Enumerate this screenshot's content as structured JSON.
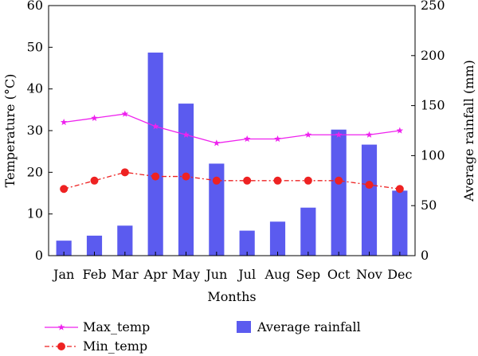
{
  "chart_data": {
    "type": "bar+line",
    "xlabel": "Months",
    "ylabel_left": "Temperature (°C)",
    "ylabel_right": "Average rainfall (mm)",
    "categories": [
      "Jan",
      "Feb",
      "Mar",
      "Apr",
      "May",
      "Jun",
      "Jul",
      "Aug",
      "Sep",
      "Oct",
      "Nov",
      "Dec"
    ],
    "y_left": {
      "min": 0,
      "max": 60,
      "ticks": [
        "0",
        "10",
        "20",
        "30",
        "40",
        "50",
        "60"
      ]
    },
    "y_right": {
      "min": 0,
      "max": 250,
      "ticks": [
        "0",
        "50",
        "100",
        "150",
        "200",
        "250"
      ]
    },
    "bars": {
      "name": "Average rainfall",
      "axis": "right",
      "color": "#5b5bef",
      "values": [
        15,
        20,
        30,
        203,
        152,
        92,
        25,
        34,
        48,
        126,
        111,
        65
      ]
    },
    "series": [
      {
        "name": "Max_temp",
        "axis": "left",
        "color": "#ee22ee",
        "marker": "star",
        "line_style": "solid",
        "values": [
          32,
          33,
          34,
          31,
          29,
          27,
          28,
          28,
          29,
          29,
          29,
          30
        ]
      },
      {
        "name": "Min_temp",
        "axis": "left",
        "color": "#ee2222",
        "marker": "circle",
        "line_style": "dashdot",
        "values": [
          16,
          18,
          20,
          19,
          19,
          18,
          18,
          18,
          18,
          18,
          17,
          16
        ]
      }
    ],
    "legend_position": "bottom",
    "grid": false
  }
}
